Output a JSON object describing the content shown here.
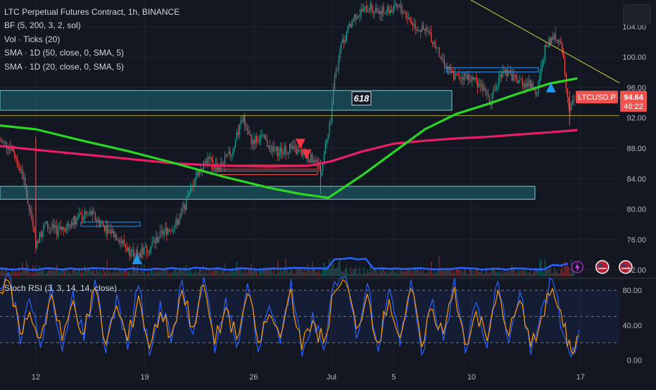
{
  "legend": {
    "title": "LTC Perpetual Futures Contract, 1h, BINANCE",
    "indicators": [
      "BF (5, 200, 3, 2, sol)",
      "Vol · Ticks (20)",
      "SMA · 1D (50, close, 0, SMA, 5)",
      "SMA · 1D (20, close, 0, SMA, 5)"
    ]
  },
  "oscillator": {
    "title": "Stoch RSI (3, 3, 14, 14, close)"
  },
  "fib_label": "618",
  "price_tag": {
    "symbol": "LTCUSD.P",
    "price": "94.64",
    "countdown": "46:22"
  },
  "colors": {
    "background": "#131722",
    "candle_up": "#26a69a",
    "candle_down": "#ef5350",
    "sma_50": "#2bd624",
    "sma_20": "#e91e63",
    "zone": "#1c6a75",
    "trendline": "#d6d43c",
    "volume_ma": "#2962ff",
    "stoch_k": "#2962ff",
    "stoch_d": "#ff9800",
    "signal_up": "#2196f3",
    "signal_down": "#f23645"
  },
  "chart_data": [
    {
      "type": "line",
      "yticks": [
        72,
        76,
        80,
        84,
        88,
        92,
        96,
        100,
        104
      ],
      "ytick_labels": [
        "72.00",
        "76.00",
        "80.00",
        "84.00",
        "88.00",
        "92.00",
        "96.00",
        "100.00",
        "104.00"
      ],
      "ylim": [
        71,
        107.5
      ],
      "xlabels": [
        "12",
        "19",
        "26",
        "Jul",
        "5",
        "10",
        "17"
      ],
      "xlabel_days": [
        12,
        19,
        26,
        31,
        35,
        40,
        47
      ],
      "xlim_days": [
        9.7,
        49.5
      ],
      "last_price": 94.64,
      "series": [
        {
          "key": "price",
          "points": [
            [
              9.7,
              89.0
            ],
            [
              10.5,
              88.0
            ],
            [
              11.2,
              84.0
            ],
            [
              12.0,
              75.5
            ],
            [
              12.6,
              78.0
            ],
            [
              13.4,
              77.0
            ],
            [
              14.4,
              78.5
            ],
            [
              15.5,
              79.5
            ],
            [
              16.2,
              78.0
            ],
            [
              17.2,
              76.5
            ],
            [
              18.0,
              74.5
            ],
            [
              18.6,
              74.0
            ],
            [
              19.3,
              75.0
            ],
            [
              20.2,
              77.0
            ],
            [
              21.0,
              78.0
            ],
            [
              21.6,
              80.5
            ],
            [
              22.3,
              84.5
            ],
            [
              23.0,
              86.5
            ],
            [
              23.8,
              85.5
            ],
            [
              24.6,
              87.5
            ],
            [
              25.3,
              92.0
            ],
            [
              25.8,
              89.0
            ],
            [
              26.5,
              89.5
            ],
            [
              27.3,
              87.5
            ],
            [
              28.3,
              88.0
            ],
            [
              29.2,
              87.2
            ],
            [
              29.8,
              86.5
            ],
            [
              30.3,
              85.0
            ],
            [
              30.9,
              91.0
            ],
            [
              31.2,
              97.0
            ],
            [
              31.7,
              102.0
            ],
            [
              32.5,
              105.5
            ],
            [
              33.4,
              106.5
            ],
            [
              34.4,
              106.0
            ],
            [
              35.4,
              106.5
            ],
            [
              36.4,
              104.0
            ],
            [
              37.3,
              103.0
            ],
            [
              38.0,
              100.0
            ],
            [
              38.8,
              97.5
            ],
            [
              39.6,
              97.5
            ],
            [
              40.5,
              96.5
            ],
            [
              41.2,
              94.0
            ],
            [
              42.0,
              98.5
            ],
            [
              42.8,
              97.0
            ],
            [
              43.6,
              96.5
            ],
            [
              44.2,
              95.5
            ],
            [
              44.7,
              101.0
            ],
            [
              45.3,
              103.0
            ],
            [
              45.8,
              101.0
            ],
            [
              46.3,
              93.0
            ],
            [
              46.6,
              94.64
            ]
          ]
        },
        {
          "key": "sma_50",
          "points": [
            [
              9.7,
              91.0
            ],
            [
              12.0,
              90.5
            ],
            [
              15.0,
              89.0
            ],
            [
              18.0,
              87.6
            ],
            [
              21.0,
              86.0
            ],
            [
              24.0,
              84.3
            ],
            [
              27.0,
              82.8
            ],
            [
              29.0,
              82.0
            ],
            [
              30.8,
              81.5
            ],
            [
              33.0,
              84.5
            ],
            [
              35.0,
              87.5
            ],
            [
              37.0,
              90.5
            ],
            [
              39.0,
              92.5
            ],
            [
              41.0,
              93.8
            ],
            [
              43.0,
              95.2
            ],
            [
              45.0,
              96.5
            ],
            [
              46.8,
              97.2
            ]
          ],
          "name": ""
        },
        {
          "key": "sma_20",
          "points": [
            [
              9.7,
              88.3
            ],
            [
              12.0,
              87.8
            ],
            [
              15.0,
              87.2
            ],
            [
              18.0,
              86.6
            ],
            [
              21.0,
              86.0
            ],
            [
              24.0,
              85.7
            ],
            [
              27.0,
              85.6
            ],
            [
              29.5,
              85.7
            ],
            [
              31.0,
              86.3
            ],
            [
              33.0,
              87.6
            ],
            [
              35.0,
              88.6
            ],
            [
              37.0,
              89.0
            ],
            [
              39.0,
              89.3
            ],
            [
              41.0,
              89.5
            ],
            [
              43.0,
              89.8
            ],
            [
              45.0,
              90.1
            ],
            [
              46.8,
              90.4
            ]
          ],
          "name": ""
        }
      ]
    },
    {
      "type": "line",
      "yticks": [
        0,
        40,
        80
      ],
      "ytick_labels": [
        "0.00",
        "40.00",
        "80.00"
      ],
      "ylim": [
        -6,
        93
      ],
      "xlim_days": [
        9.7,
        49.5
      ],
      "band": [
        20,
        80
      ],
      "series": [
        {
          "key": "stoch_k",
          "points": [
            [
              9.7,
              82
            ],
            [
              10.4,
              92
            ],
            [
              11.0,
              18
            ],
            [
              11.6,
              70
            ],
            [
              12.3,
              15
            ],
            [
              13.0,
              88
            ],
            [
              13.7,
              10
            ],
            [
              14.4,
              80
            ],
            [
              15.1,
              22
            ],
            [
              15.8,
              92
            ],
            [
              16.5,
              8
            ],
            [
              17.2,
              75
            ],
            [
              17.9,
              12
            ],
            [
              18.6,
              85
            ],
            [
              19.3,
              5
            ],
            [
              20.0,
              68
            ],
            [
              20.7,
              20
            ],
            [
              21.4,
              92
            ],
            [
              22.1,
              30
            ],
            [
              22.8,
              95
            ],
            [
              23.5,
              8
            ],
            [
              24.2,
              72
            ],
            [
              24.9,
              15
            ],
            [
              25.6,
              88
            ],
            [
              26.3,
              10
            ],
            [
              27.0,
              62
            ],
            [
              27.7,
              18
            ],
            [
              28.4,
              93
            ],
            [
              29.1,
              4
            ],
            [
              29.8,
              55
            ],
            [
              30.5,
              12
            ],
            [
              31.2,
              90
            ],
            [
              31.9,
              96
            ],
            [
              32.6,
              25
            ],
            [
              33.3,
              88
            ],
            [
              34.0,
              10
            ],
            [
              34.7,
              82
            ],
            [
              35.4,
              16
            ],
            [
              36.1,
              92
            ],
            [
              36.8,
              6
            ],
            [
              37.5,
              70
            ],
            [
              38.2,
              22
            ],
            [
              38.9,
              94
            ],
            [
              39.6,
              8
            ],
            [
              40.3,
              66
            ],
            [
              41.0,
              14
            ],
            [
              41.7,
              90
            ],
            [
              42.4,
              20
            ],
            [
              43.1,
              78
            ],
            [
              43.8,
              6
            ],
            [
              44.5,
              60
            ],
            [
              45.2,
              92
            ],
            [
              45.9,
              30
            ],
            [
              46.4,
              4
            ],
            [
              46.9,
              35
            ]
          ],
          "name": ""
        },
        {
          "key": "stoch_d",
          "points": [
            [
              9.7,
              78
            ],
            [
              10.4,
              85
            ],
            [
              11.0,
              30
            ],
            [
              11.6,
              55
            ],
            [
              12.3,
              25
            ],
            [
              13.0,
              75
            ],
            [
              13.7,
              22
            ],
            [
              14.4,
              68
            ],
            [
              15.1,
              30
            ],
            [
              15.8,
              82
            ],
            [
              16.5,
              18
            ],
            [
              17.2,
              62
            ],
            [
              17.9,
              22
            ],
            [
              18.6,
              74
            ],
            [
              19.3,
              14
            ],
            [
              20.0,
              55
            ],
            [
              20.7,
              28
            ],
            [
              21.4,
              80
            ],
            [
              22.1,
              38
            ],
            [
              22.8,
              86
            ],
            [
              23.5,
              18
            ],
            [
              24.2,
              60
            ],
            [
              24.9,
              24
            ],
            [
              25.6,
              76
            ],
            [
              26.3,
              20
            ],
            [
              27.0,
              52
            ],
            [
              27.7,
              26
            ],
            [
              28.4,
              82
            ],
            [
              29.1,
              12
            ],
            [
              29.8,
              45
            ],
            [
              30.5,
              20
            ],
            [
              31.2,
              78
            ],
            [
              31.9,
              90
            ],
            [
              32.6,
              36
            ],
            [
              33.3,
              76
            ],
            [
              34.0,
              20
            ],
            [
              34.7,
              70
            ],
            [
              35.4,
              26
            ],
            [
              36.1,
              82
            ],
            [
              36.8,
              15
            ],
            [
              37.5,
              58
            ],
            [
              38.2,
              30
            ],
            [
              38.9,
              84
            ],
            [
              39.6,
              18
            ],
            [
              40.3,
              56
            ],
            [
              41.0,
              22
            ],
            [
              41.7,
              80
            ],
            [
              42.4,
              28
            ],
            [
              43.1,
              68
            ],
            [
              43.8,
              15
            ],
            [
              44.5,
              50
            ],
            [
              45.2,
              82
            ],
            [
              45.9,
              38
            ],
            [
              46.4,
              10
            ],
            [
              46.9,
              28
            ]
          ],
          "name": ""
        }
      ]
    }
  ]
}
